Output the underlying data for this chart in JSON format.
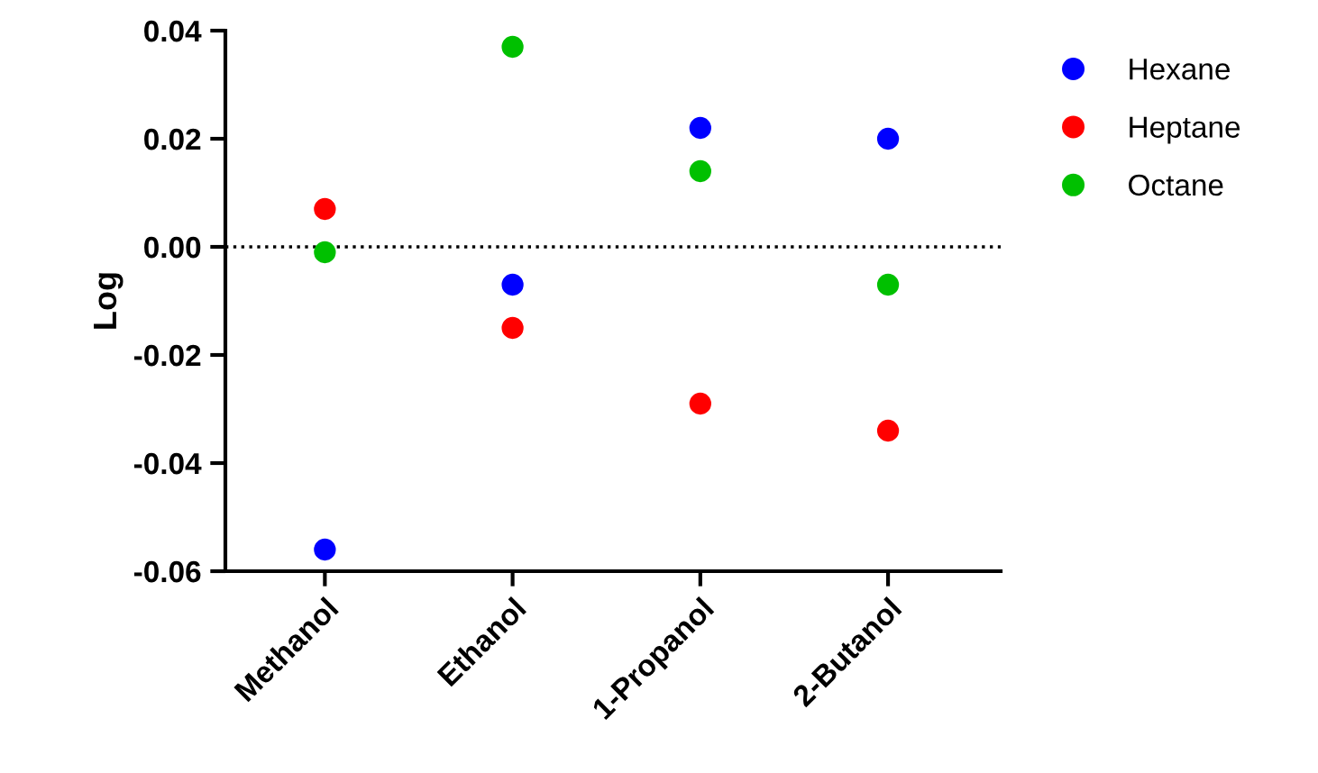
{
  "chart_data": {
    "type": "scatter",
    "ylabel": "Log",
    "categories": [
      "Methanol",
      "Ethanol",
      "1-Propanol",
      "2-Butanol"
    ],
    "series": [
      {
        "name": "Hexane",
        "color": "#0000ff",
        "values": [
          -0.056,
          -0.007,
          0.022,
          0.02
        ]
      },
      {
        "name": "Heptane",
        "color": "#ff0000",
        "values": [
          0.007,
          -0.015,
          -0.029,
          -0.034
        ]
      },
      {
        "name": "Octane",
        "color": "#00c000",
        "values": [
          -0.001,
          0.037,
          0.014,
          -0.007
        ]
      }
    ],
    "ylim": [
      -0.06,
      0.04
    ],
    "yticks": [
      {
        "value": -0.06,
        "label": "-0.06"
      },
      {
        "value": -0.04,
        "label": "-0.04"
      },
      {
        "value": -0.02,
        "label": "-0.02"
      },
      {
        "value": 0,
        "label": "0.00"
      },
      {
        "value": 0.02,
        "label": "0.02"
      },
      {
        "value": 0.04,
        "label": "0.04"
      }
    ],
    "ref_lines": [
      {
        "axis": "y",
        "value": 0,
        "color": "#000000",
        "line_style": "dotted"
      }
    ],
    "marker": "circle",
    "legend": "top right",
    "grid": false
  }
}
